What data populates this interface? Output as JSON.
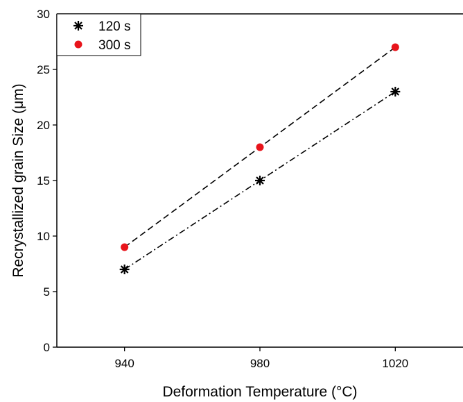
{
  "chart_data": {
    "type": "scatter",
    "title": "",
    "xlabel": "Deformation Temperature (°C)",
    "ylabel": "Recrystallized grain Size (μm)",
    "xlim": [
      920,
      1040
    ],
    "ylim": [
      0,
      30
    ],
    "x_ticks": [
      940,
      980,
      1020
    ],
    "y_ticks": [
      0,
      5,
      10,
      15,
      20,
      25,
      30
    ],
    "grid": false,
    "legend_position": "top-left",
    "series": [
      {
        "name": "120 s",
        "x": [
          940,
          980,
          1020
        ],
        "y": [
          7,
          15,
          23
        ],
        "marker": "asterisk",
        "color": "#000000",
        "fit_line": "dash-dot"
      },
      {
        "name": "300 s",
        "x": [
          940,
          980,
          1020
        ],
        "y": [
          9,
          18,
          27
        ],
        "marker": "circle",
        "color": "#e8141b",
        "fit_line": "dashed"
      }
    ]
  }
}
